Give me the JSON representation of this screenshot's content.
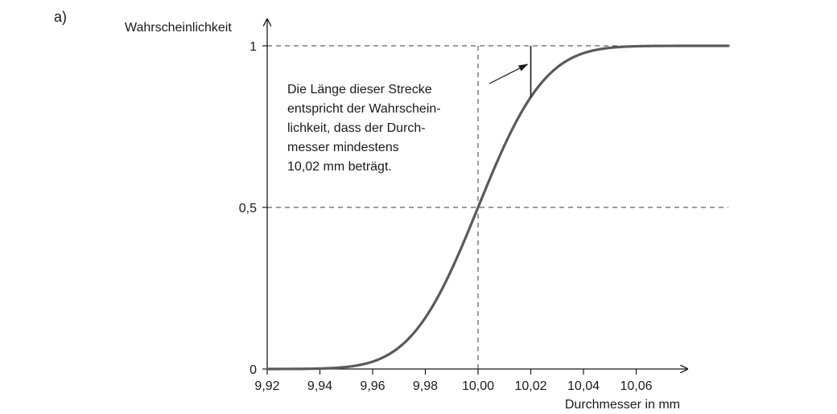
{
  "part_label": "a)",
  "chart_data": {
    "type": "line",
    "ylabel": "Wahrscheinlichkeit",
    "xlabel": "Durchmesser in mm",
    "xlim": [
      9.92,
      10.08
    ],
    "ylim": [
      0,
      1
    ],
    "x_ticks": [
      {
        "value": 9.92,
        "label": "9,92"
      },
      {
        "value": 9.94,
        "label": "9,94"
      },
      {
        "value": 9.96,
        "label": "9,96"
      },
      {
        "value": 9.98,
        "label": "9,98"
      },
      {
        "value": 10.0,
        "label": "10,00"
      },
      {
        "value": 10.02,
        "label": "10,02"
      },
      {
        "value": 10.04,
        "label": "10,04"
      },
      {
        "value": 10.06,
        "label": "10,06"
      }
    ],
    "y_ticks": [
      {
        "value": 0,
        "label": "0"
      },
      {
        "value": 0.5,
        "label": "0,5"
      },
      {
        "value": 1,
        "label": "1"
      }
    ],
    "series": [
      {
        "distribution": "normal CDF",
        "mean": 10.0,
        "sd": 0.02,
        "x": [
          9.92,
          9.94,
          9.96,
          9.98,
          10.0,
          10.02,
          10.04,
          10.06,
          10.08
        ],
        "values": [
          0.0,
          0.0013,
          0.0228,
          0.1587,
          0.5,
          0.8413,
          0.9772,
          0.9987,
          1.0
        ]
      }
    ],
    "reference_lines": [
      {
        "orientation": "horizontal",
        "y": 1,
        "style": "dashed"
      },
      {
        "orientation": "horizontal",
        "y": 0.5,
        "style": "dashed"
      },
      {
        "orientation": "vertical",
        "x": 10.0,
        "style": "dashed"
      }
    ],
    "marked_segment": {
      "x": 10.02,
      "y_from": 0.8413,
      "y_to": 1
    },
    "annotation": {
      "lines": [
        "Die Länge dieser Strecke",
        "entspricht der Wahrschein-",
        "lichkeit, dass der Durch-",
        "messer mindestens",
        "10,02 mm beträgt."
      ]
    }
  }
}
